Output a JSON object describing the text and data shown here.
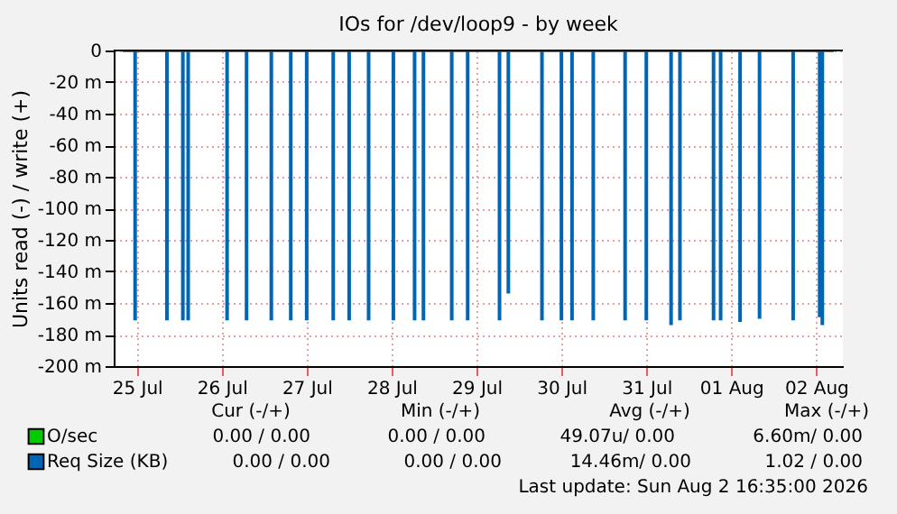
{
  "chart_data": {
    "type": "bar",
    "title": "IOs for /dev/loop9 - by week",
    "ylabel": "Units read (-) / write (+)",
    "xlim": [
      "2026-07-25T08:00",
      "2026-08-02T17:00"
    ],
    "xticks": [
      {
        "value": "2026-07-25T12:00",
        "label": "25 Jul"
      },
      {
        "value": "2026-07-26T12:00",
        "label": "26 Jul"
      },
      {
        "value": "2026-07-27T12:00",
        "label": "27 Jul"
      },
      {
        "value": "2026-07-28T12:00",
        "label": "28 Jul"
      },
      {
        "value": "2026-07-29T12:00",
        "label": "29 Jul"
      },
      {
        "value": "2026-07-30T12:00",
        "label": "30 Jul"
      },
      {
        "value": "2026-07-31T12:00",
        "label": "31 Jul"
      },
      {
        "value": "2026-08-01T12:00",
        "label": "01 Aug"
      },
      {
        "value": "2026-08-02T12:00",
        "label": "02 Aug"
      }
    ],
    "ylim": [
      -200,
      0
    ],
    "yticks": [
      0,
      {
        "value": -20,
        "label": "-20 m"
      },
      {
        "value": -40,
        "label": "-40 m"
      },
      {
        "value": -60,
        "label": "-60 m"
      },
      {
        "value": -80,
        "label": "-80 m"
      },
      {
        "value": -100,
        "label": "-100 m"
      },
      {
        "value": -120,
        "label": "-120 m"
      },
      {
        "value": -140,
        "label": "-140 m"
      },
      {
        "value": -160,
        "label": "-160 m"
      },
      {
        "value": -180,
        "label": "-180 m"
      },
      {
        "value": -200,
        "label": "-200 m"
      }
    ],
    "grid": true,
    "legend": "bottom left",
    "series": [
      {
        "name": "O/sec",
        "color": "#00cc00",
        "type": "line",
        "x": [
          "2026-07-25T08:00",
          "2026-08-02T17:00"
        ],
        "values": [
          0,
          0
        ]
      },
      {
        "name": "Req Size (KB)",
        "color": "#0066b3",
        "x": [
          "2026-07-25T11:30",
          "2026-07-25T20:30",
          "2026-07-26T01:00",
          "2026-07-26T02:30",
          "2026-07-26T13:30",
          "2026-07-26T19:00",
          "2026-07-27T02:00",
          "2026-07-27T07:30",
          "2026-07-27T12:00",
          "2026-07-27T19:30",
          "2026-07-28T00:00",
          "2026-07-28T05:30",
          "2026-07-28T12:30",
          "2026-07-28T18:30",
          "2026-07-28T21:00",
          "2026-07-29T05:00",
          "2026-07-29T09:30",
          "2026-07-29T18:30",
          "2026-07-29T21:00",
          "2026-07-30T06:30",
          "2026-07-30T12:00",
          "2026-07-30T15:00",
          "2026-07-30T21:00",
          "2026-07-31T06:00",
          "2026-07-31T12:00",
          "2026-07-31T19:00",
          "2026-07-31T21:30",
          "2026-08-01T07:00",
          "2026-08-01T09:00",
          "2026-08-01T14:30",
          "2026-08-01T20:00",
          "2026-08-02T05:30",
          "2026-08-02T13:00",
          "2026-08-02T13:45"
        ],
        "values": [
          -171,
          -171,
          -171,
          -171,
          -171,
          -171,
          -171,
          -171,
          -171,
          -171,
          -171,
          -171,
          -171,
          -171,
          -171,
          -171,
          -171,
          -171,
          -154,
          -171,
          -171,
          -171,
          -171,
          -171,
          -171,
          -174,
          -171,
          -171,
          -171,
          -172,
          -170,
          -171,
          -169,
          -174
        ]
      }
    ],
    "annotations": [
      "Cur (-/+)",
      "Min (-/+)",
      "Avg (-/+)",
      "Max (-/+)",
      "0.00 /    0.00",
      "0.00 /    0.00",
      "49.07u/    0.00",
      "6.60m/    0.00",
      "0.00 /    0.00",
      "0.00 /    0.00",
      "14.46m/    0.00",
      "1.02 /    0.00",
      "Last update: Sun Aug  2 16:35:00 2026"
    ]
  }
}
